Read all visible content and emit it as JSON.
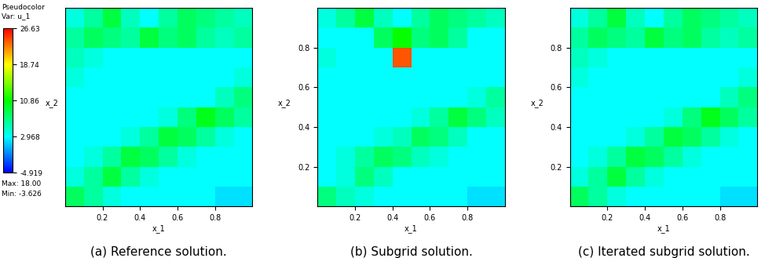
{
  "chart_data": [
    {
      "type": "heatmap",
      "caption": "(a) Reference solution.",
      "xlabel": "x_1",
      "ylabel": "x_2",
      "xlim": [
        0,
        1
      ],
      "ylim": [
        0,
        1
      ],
      "xticks": [
        0.2,
        0.4,
        0.6,
        0.8
      ],
      "tick_labels": "x",
      "colorbar": {
        "title": "Pseudocolor",
        "variable": "Var: u_1",
        "range": [
          -4.919,
          26.63
        ],
        "ticks": [
          26.63,
          18.74,
          10.86,
          2.968,
          -4.919
        ],
        "max_label": "Max: 18.00",
        "min_label": "Min: -3.626"
      },
      "cells": [
        [
          8,
          6,
          4,
          3,
          3,
          3,
          3,
          3,
          2,
          2
        ],
        [
          4,
          6,
          9,
          6,
          4,
          3,
          3,
          3,
          3,
          3
        ],
        [
          3,
          4,
          6,
          9,
          8,
          6,
          4,
          3,
          3,
          3
        ],
        [
          3,
          3,
          3,
          4,
          6,
          9,
          8,
          6,
          4,
          3
        ],
        [
          3,
          3,
          3,
          3,
          3,
          4,
          7,
          10,
          8,
          6
        ],
        [
          3,
          3,
          3,
          3,
          3,
          3,
          3,
          3,
          5,
          7
        ],
        [
          4,
          3,
          3,
          3,
          3,
          3,
          3,
          3,
          3,
          4
        ],
        [
          5,
          4,
          3,
          3,
          3,
          3,
          3,
          3,
          3,
          3
        ],
        [
          6,
          8,
          7,
          6,
          9,
          7,
          8,
          6,
          5,
          6
        ],
        [
          4,
          6,
          9,
          5,
          3,
          6,
          8,
          7,
          6,
          5
        ]
      ]
    },
    {
      "type": "heatmap",
      "caption": "(b) Subgrid solution.",
      "xlabel": "x_1",
      "ylabel": "x_2",
      "xlim": [
        0,
        1
      ],
      "ylim": [
        0,
        1
      ],
      "xticks": [
        0.2,
        0.4,
        0.6,
        0.8
      ],
      "yticks": [
        0.2,
        0.4,
        0.6,
        0.8
      ],
      "cells": [
        [
          7,
          5,
          4,
          3,
          3,
          3,
          3,
          3,
          2,
          2
        ],
        [
          3,
          4,
          7,
          5,
          3,
          3,
          3,
          3,
          3,
          3
        ],
        [
          3,
          4,
          6,
          8,
          7,
          5,
          4,
          3,
          3,
          3
        ],
        [
          3,
          3,
          3,
          4,
          5,
          8,
          7,
          5,
          3,
          3
        ],
        [
          3,
          3,
          3,
          3,
          3,
          4,
          6,
          9,
          7,
          5
        ],
        [
          3,
          3,
          3,
          3,
          3,
          3,
          3,
          3,
          4,
          6
        ],
        [
          3,
          3,
          3,
          3,
          3,
          3,
          3,
          3,
          3,
          3
        ],
        [
          4,
          3,
          3,
          3,
          24,
          3,
          3,
          3,
          3,
          3
        ],
        [
          3,
          3,
          3,
          8,
          11,
          7,
          8,
          6,
          3,
          3
        ],
        [
          4,
          6,
          9,
          5,
          3,
          6,
          8,
          7,
          6,
          5
        ]
      ]
    },
    {
      "type": "heatmap",
      "caption": "(c) Iterated subgrid solution.",
      "xlabel": "x_1",
      "ylabel": "x_2",
      "xlim": [
        0,
        1
      ],
      "ylim": [
        0,
        1
      ],
      "xticks": [
        0.2,
        0.4,
        0.6,
        0.8
      ],
      "yticks": [
        0.2,
        0.4,
        0.6,
        0.8
      ],
      "cells": [
        [
          8,
          6,
          4,
          3,
          3,
          3,
          3,
          3,
          2,
          2
        ],
        [
          4,
          6,
          9,
          6,
          4,
          3,
          3,
          3,
          3,
          3
        ],
        [
          3,
          4,
          6,
          9,
          8,
          6,
          4,
          3,
          3,
          3
        ],
        [
          3,
          3,
          3,
          4,
          6,
          9,
          8,
          6,
          4,
          3
        ],
        [
          3,
          3,
          3,
          3,
          3,
          4,
          7,
          10,
          8,
          6
        ],
        [
          3,
          3,
          3,
          3,
          3,
          3,
          3,
          3,
          5,
          7
        ],
        [
          4,
          3,
          3,
          3,
          3,
          3,
          3,
          3,
          3,
          4
        ],
        [
          5,
          4,
          3,
          3,
          3,
          3,
          3,
          3,
          3,
          3
        ],
        [
          6,
          8,
          7,
          6,
          9,
          7,
          8,
          6,
          5,
          6
        ],
        [
          4,
          6,
          9,
          5,
          3,
          6,
          8,
          7,
          6,
          5
        ]
      ]
    }
  ]
}
